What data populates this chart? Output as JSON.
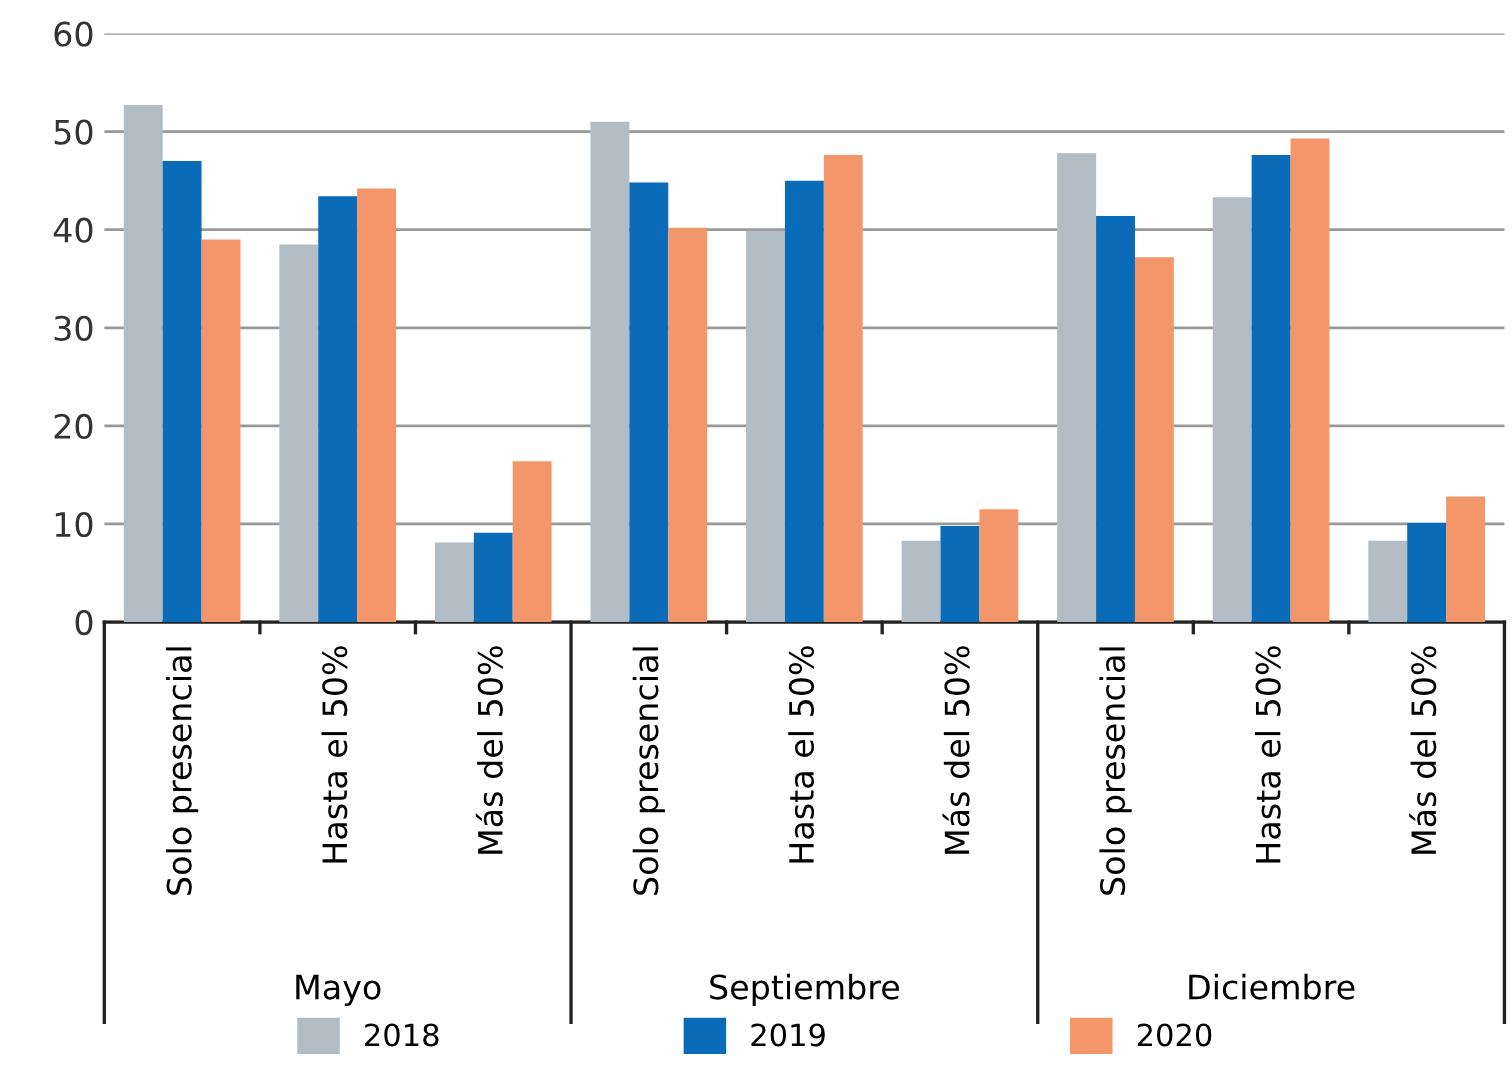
{
  "chart_data": {
    "type": "bar",
    "categories": [
      "Solo presencial",
      "Hasta el 50%",
      "Más del 50%",
      "Solo presencial",
      "Hasta el 50%",
      "Más del 50%",
      "Solo presencial",
      "Hasta el 50%",
      "Más del 50%"
    ],
    "series": [
      {
        "name": "2018",
        "color": "#b1bcc4",
        "values": [
          52.7,
          38.5,
          8.1,
          51.0,
          39.9,
          8.3,
          47.8,
          43.3,
          8.3
        ]
      },
      {
        "name": "2019",
        "color": "#0a6bb8",
        "values": [
          47.0,
          43.4,
          9.1,
          44.8,
          45.0,
          9.8,
          41.4,
          47.6,
          10.1
        ]
      },
      {
        "name": "2020",
        "color": "#f3976a",
        "values": [
          39.0,
          44.2,
          16.4,
          40.2,
          47.6,
          11.5,
          37.2,
          49.3,
          12.8
        ]
      }
    ],
    "annotations": [
      "Mayo",
      "Septiembre",
      "Diciembre"
    ],
    "ylim": [
      0,
      60
    ],
    "yticks": [
      0,
      10,
      20,
      30,
      40,
      50,
      60
    ],
    "grid": "y",
    "legend": "bottom"
  }
}
